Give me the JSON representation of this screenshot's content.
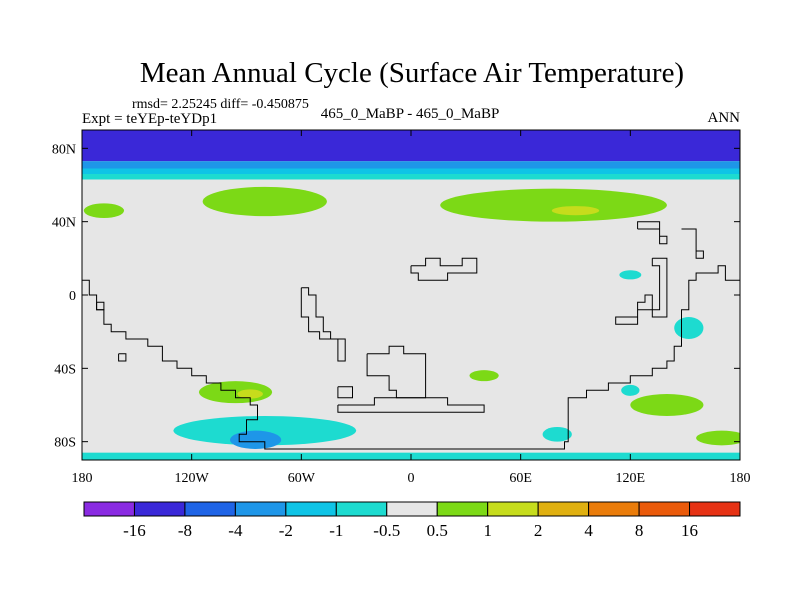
{
  "chart_data": {
    "type": "heatmap",
    "title": "Mean Annual Cycle (Surface Air Temperature)",
    "stats_line": "rmsd= 2.25245 diff= -0.450875",
    "left_label": "Expt = teYEp-teYDp1",
    "center_label": "465_0_MaBP - 465_0_MaBP",
    "right_label": "ANN",
    "projection": "cylindrical equidistant",
    "x_range": [
      -180,
      180
    ],
    "y_range": [
      -90,
      90
    ],
    "x_ticks": [
      {
        "value": -180,
        "label": "180"
      },
      {
        "value": -120,
        "label": "120W"
      },
      {
        "value": -60,
        "label": "60W"
      },
      {
        "value": 0,
        "label": "0"
      },
      {
        "value": 60,
        "label": "60E"
      },
      {
        "value": 120,
        "label": "120E"
      },
      {
        "value": 180,
        "label": "180"
      }
    ],
    "y_ticks": [
      {
        "value": 80,
        "label": "80N"
      },
      {
        "value": 40,
        "label": "40N"
      },
      {
        "value": 0,
        "label": "0"
      },
      {
        "value": -40,
        "label": "40S"
      },
      {
        "value": -80,
        "label": "80S"
      }
    ],
    "background_class": "-0.5 to 0.5",
    "colorbar": {
      "colors": [
        "#8a2be2",
        "#3a28d8",
        "#1f64e6",
        "#1e96e8",
        "#0fc4e6",
        "#1ddbd0",
        "#e6e6e6",
        "#7cd916",
        "#c6dc1c",
        "#e0b010",
        "#ea7c0a",
        "#ea5a0a",
        "#e63214"
      ],
      "labels": [
        "-16",
        "-8",
        "-4",
        "-2",
        "-1",
        "-0.5",
        "0.5",
        "1",
        "2",
        "4",
        "8",
        "16"
      ]
    },
    "regions": [
      {
        "lon": [
          -180,
          180
        ],
        "lat": [
          73,
          90
        ],
        "color": "#3a28d8",
        "class": "-16 to -8"
      },
      {
        "lon": [
          -180,
          180
        ],
        "lat": [
          69,
          73
        ],
        "color": "#1e96e8",
        "class": "-4 to -2"
      },
      {
        "lon": [
          -180,
          180
        ],
        "lat": [
          66,
          69
        ],
        "color": "#0fc4e6",
        "class": "-2 to -1"
      },
      {
        "lon": [
          -180,
          180
        ],
        "lat": [
          63,
          66
        ],
        "color": "#1ddbd0",
        "class": "-1 to -0.5"
      },
      {
        "lon": [
          -180,
          180
        ],
        "lat": [
          -86,
          -90
        ],
        "color": "#1ddbd0",
        "class": "-1 to -0.5"
      }
    ],
    "patches": [
      {
        "name": "north-atlantic-warm",
        "cx": -80,
        "cy": 51,
        "rx": 34,
        "ry": 8,
        "color": "#7cd916"
      },
      {
        "name": "pacific-warm-west",
        "cx": -168,
        "cy": 46,
        "rx": 11,
        "ry": 4,
        "color": "#7cd916"
      },
      {
        "name": "eurasia-warm",
        "cx": 78,
        "cy": 49,
        "rx": 62,
        "ry": 9,
        "color": "#7cd916"
      },
      {
        "name": "eurasia-warm-core",
        "cx": 90,
        "cy": 46,
        "rx": 13,
        "ry": 2.5,
        "color": "#c6dc1c"
      },
      {
        "name": "east-pacific-cool",
        "cx": 152,
        "cy": -18,
        "rx": 8,
        "ry": 6,
        "color": "#1ddbd0"
      },
      {
        "name": "indian-cool",
        "cx": 120,
        "cy": 11,
        "rx": 6,
        "ry": 2.5,
        "color": "#1ddbd0"
      },
      {
        "name": "south-atlantic-warm",
        "cx": -96,
        "cy": -53,
        "rx": 20,
        "ry": 6,
        "color": "#7cd916"
      },
      {
        "name": "south-atlantic-core",
        "cx": -88,
        "cy": -54,
        "rx": 7,
        "ry": 2.5,
        "color": "#c6dc1c"
      },
      {
        "name": "southern-cool-west",
        "cx": -80,
        "cy": -74,
        "rx": 50,
        "ry": 8,
        "color": "#1ddbd0"
      },
      {
        "name": "southern-cool-core",
        "cx": -85,
        "cy": -79,
        "rx": 14,
        "ry": 5,
        "color": "#1e96e8"
      },
      {
        "name": "indian-south-warm",
        "cx": 40,
        "cy": -44,
        "rx": 8,
        "ry": 3,
        "color": "#7cd916"
      },
      {
        "name": "australia-warm",
        "cx": 140,
        "cy": -60,
        "rx": 20,
        "ry": 6,
        "color": "#7cd916"
      },
      {
        "name": "australia-cool",
        "cx": 120,
        "cy": -52,
        "rx": 5,
        "ry": 3,
        "color": "#1ddbd0"
      },
      {
        "name": "pacific-south-warm",
        "cx": 170,
        "cy": -78,
        "rx": 14,
        "ry": 4,
        "color": "#7cd916"
      },
      {
        "name": "antarctic-cool-east",
        "cx": 80,
        "cy": -76,
        "rx": 8,
        "ry": 4,
        "color": "#1ddbd0"
      }
    ],
    "continents": [
      [
        [
          -180,
          8
        ],
        [
          -176,
          8
        ],
        [
          -176,
          0
        ],
        [
          -172,
          0
        ],
        [
          -172,
          -8
        ],
        [
          -168,
          -8
        ],
        [
          -168,
          -16
        ],
        [
          -164,
          -16
        ],
        [
          -164,
          -20
        ],
        [
          -156,
          -20
        ],
        [
          -156,
          -24
        ],
        [
          -144,
          -24
        ],
        [
          -144,
          -28
        ],
        [
          -136,
          -28
        ],
        [
          -136,
          -36
        ],
        [
          -128,
          -36
        ],
        [
          -128,
          -40
        ],
        [
          -120,
          -40
        ],
        [
          -120,
          -44
        ],
        [
          -112,
          -44
        ],
        [
          -112,
          -48
        ],
        [
          -104,
          -48
        ],
        [
          -104,
          -52
        ],
        [
          -96,
          -52
        ],
        [
          -96,
          -56
        ],
        [
          -88,
          -56
        ],
        [
          -88,
          -60
        ],
        [
          -84,
          -60
        ],
        [
          -84,
          -68
        ],
        [
          -90,
          -68
        ],
        [
          -90,
          -76
        ],
        [
          -94,
          -76
        ],
        [
          -94,
          -80
        ],
        [
          -80,
          -80
        ],
        [
          -80,
          -84
        ],
        [
          -40,
          -84
        ],
        [
          -20,
          -84
        ],
        [
          40,
          -84
        ],
        [
          84,
          -84
        ],
        [
          84,
          -80
        ],
        [
          86,
          -80
        ],
        [
          86,
          -56
        ],
        [
          96,
          -56
        ],
        [
          96,
          -52
        ],
        [
          108,
          -52
        ],
        [
          108,
          -48
        ],
        [
          120,
          -48
        ],
        [
          120,
          -44
        ],
        [
          132,
          -44
        ],
        [
          132,
          -40
        ],
        [
          140,
          -40
        ],
        [
          140,
          -36
        ],
        [
          144,
          -36
        ],
        [
          144,
          -28
        ],
        [
          148,
          -28
        ],
        [
          148,
          -8
        ],
        [
          152,
          -8
        ],
        [
          152,
          8
        ],
        [
          156,
          8
        ],
        [
          156,
          12
        ],
        [
          168,
          12
        ],
        [
          168,
          16
        ],
        [
          172,
          16
        ],
        [
          172,
          8
        ],
        [
          180,
          8
        ]
      ],
      [
        [
          -60,
          4
        ],
        [
          -56,
          4
        ],
        [
          -56,
          0
        ],
        [
          -52,
          0
        ],
        [
          -52,
          -12
        ],
        [
          -48,
          -12
        ],
        [
          -48,
          -20
        ],
        [
          -44,
          -20
        ],
        [
          -44,
          -24
        ],
        [
          -36,
          -24
        ],
        [
          -36,
          -36
        ],
        [
          -40,
          -36
        ],
        [
          -40,
          -24
        ],
        [
          -50,
          -24
        ],
        [
          -50,
          -20
        ],
        [
          -56,
          -20
        ],
        [
          -56,
          -12
        ],
        [
          -60,
          -12
        ],
        [
          -60,
          4
        ]
      ],
      [
        [
          -24,
          -32
        ],
        [
          -12,
          -32
        ],
        [
          -12,
          -28
        ],
        [
          -4,
          -28
        ],
        [
          -4,
          -32
        ],
        [
          8,
          -32
        ],
        [
          8,
          -56
        ],
        [
          -8,
          -56
        ],
        [
          -8,
          -52
        ],
        [
          -12,
          -52
        ],
        [
          -12,
          -44
        ],
        [
          -24,
          -44
        ],
        [
          -24,
          -32
        ]
      ],
      [
        [
          0,
          16
        ],
        [
          8,
          16
        ],
        [
          8,
          20
        ],
        [
          16,
          20
        ],
        [
          16,
          16
        ],
        [
          28,
          16
        ],
        [
          28,
          20
        ],
        [
          36,
          20
        ],
        [
          36,
          12
        ],
        [
          20,
          12
        ],
        [
          20,
          8
        ],
        [
          4,
          8
        ],
        [
          4,
          12
        ],
        [
          0,
          12
        ],
        [
          0,
          16
        ]
      ],
      [
        [
          -40,
          -50
        ],
        [
          -32,
          -50
        ],
        [
          -32,
          -56
        ],
        [
          -40,
          -56
        ],
        [
          -40,
          -50
        ]
      ],
      [
        [
          -160,
          -32
        ],
        [
          -156,
          -32
        ],
        [
          -156,
          -36
        ],
        [
          -160,
          -36
        ],
        [
          -160,
          -32
        ]
      ],
      [
        [
          -172,
          -4
        ],
        [
          -168,
          -4
        ],
        [
          -168,
          -8
        ],
        [
          -172,
          -8
        ],
        [
          -172,
          -4
        ]
      ],
      [
        [
          -40,
          -60
        ],
        [
          -20,
          -60
        ],
        [
          -20,
          -56
        ],
        [
          20,
          -56
        ],
        [
          20,
          -60
        ],
        [
          40,
          -60
        ],
        [
          40,
          -64
        ],
        [
          -40,
          -64
        ],
        [
          -40,
          -60
        ]
      ],
      [
        [
          124,
          36
        ],
        [
          136,
          36
        ],
        [
          136,
          28
        ],
        [
          140,
          28
        ],
        [
          140,
          32
        ],
        [
          136,
          32
        ],
        [
          136,
          40
        ],
        [
          124,
          40
        ],
        [
          124,
          36
        ]
      ],
      [
        [
          148,
          36
        ],
        [
          156,
          36
        ],
        [
          156,
          20
        ],
        [
          160,
          20
        ],
        [
          160,
          24
        ],
        [
          156,
          24
        ],
        [
          156,
          36
        ],
        [
          148,
          36
        ]
      ],
      [
        [
          132,
          20
        ],
        [
          140,
          20
        ],
        [
          140,
          -12
        ],
        [
          132,
          -12
        ],
        [
          132,
          0
        ],
        [
          128,
          0
        ],
        [
          128,
          -4
        ],
        [
          124,
          -4
        ],
        [
          124,
          -12
        ],
        [
          112,
          -12
        ],
        [
          112,
          -16
        ],
        [
          124,
          -16
        ],
        [
          124,
          -8
        ],
        [
          136,
          -8
        ],
        [
          136,
          16
        ],
        [
          132,
          16
        ],
        [
          132,
          20
        ]
      ]
    ]
  }
}
